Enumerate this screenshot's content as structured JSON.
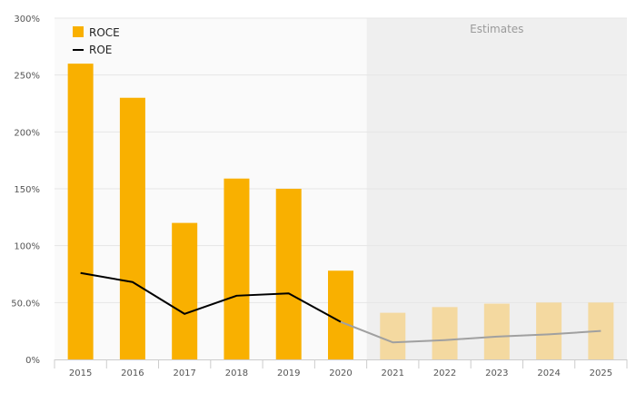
{
  "chart_data": {
    "type": "bar",
    "categories": [
      "2015",
      "2016",
      "2017",
      "2018",
      "2019",
      "2020",
      "2021",
      "2022",
      "2023",
      "2024",
      "2025"
    ],
    "series": [
      {
        "name": "ROCE",
        "kind": "bar",
        "values": [
          260,
          230,
          120,
          159,
          150,
          78,
          41,
          46,
          49,
          50,
          50
        ],
        "color": "#F9B000",
        "estimate_color": "#F4D9A0"
      },
      {
        "name": "ROE",
        "kind": "line",
        "values": [
          76,
          68,
          40,
          56,
          58,
          33,
          15,
          17,
          20,
          22,
          25
        ],
        "color": "#000000",
        "estimate_color": "#A0A0A0"
      }
    ],
    "ylim": [
      0,
      300
    ],
    "yticks": [
      {
        "value": 0,
        "label": "0%"
      },
      {
        "value": 50,
        "label": "50.0%"
      },
      {
        "value": 100,
        "label": "100%"
      },
      {
        "value": 150,
        "label": "150%"
      },
      {
        "value": 200,
        "label": "200%"
      },
      {
        "value": 250,
        "label": "250%"
      },
      {
        "value": 300,
        "label": "300%"
      }
    ],
    "estimates_start_index": 6,
    "estimates_label": "Estimates",
    "legend": {
      "position": "top-left",
      "entries": [
        "ROCE",
        "ROE"
      ]
    },
    "grid": true,
    "title": "",
    "xlabel": "",
    "ylabel": ""
  }
}
